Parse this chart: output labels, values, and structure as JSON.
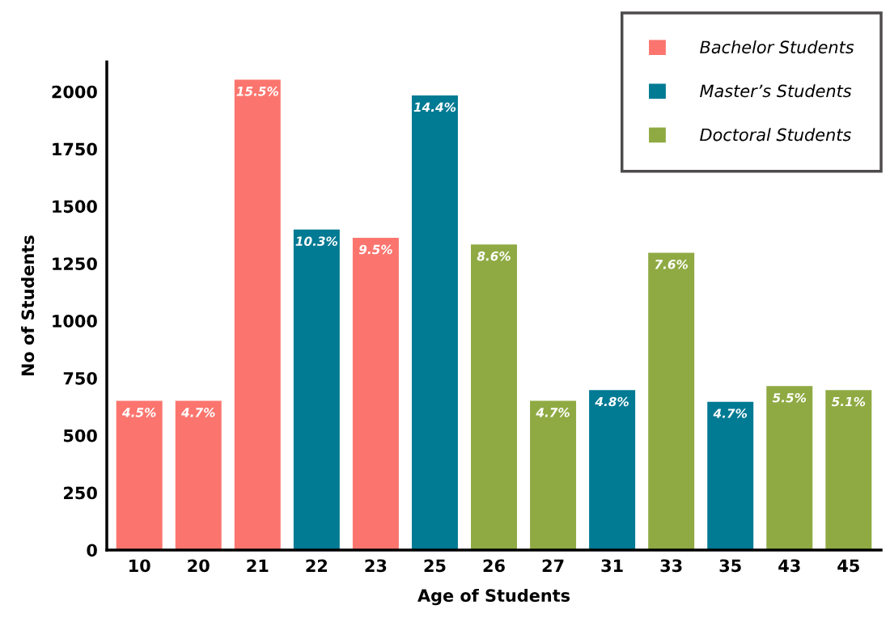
{
  "chart_data": {
    "type": "bar",
    "xlabel": "Age of Students",
    "ylabel": "No of Students",
    "categories": [
      "10",
      "20",
      "21",
      "22",
      "23",
      "25",
      "26",
      "27",
      "31",
      "33",
      "35",
      "43",
      "45"
    ],
    "series": [
      {
        "name": "Bachelor Students",
        "color": "#fb756e",
        "values": [
          651,
          651,
          2052,
          null,
          1362,
          null,
          null,
          null,
          null,
          null,
          null,
          null,
          null
        ]
      },
      {
        "name": "Master’s Students",
        "color": "#017a93",
        "values": [
          null,
          null,
          null,
          1398,
          null,
          1983,
          null,
          null,
          698,
          null,
          647,
          null,
          null
        ]
      },
      {
        "name": "Doctoral Students",
        "color": "#8faa43",
        "values": [
          null,
          null,
          null,
          null,
          null,
          null,
          1333,
          651,
          null,
          1297,
          null,
          715,
          698
        ]
      }
    ],
    "annotations": [
      {
        "text": "4.5%",
        "x": "10",
        "y": 651
      },
      {
        "text": "4.7%",
        "x": "20",
        "y": 651
      },
      {
        "text": "15.5%",
        "x": "21",
        "y": 2052
      },
      {
        "text": "10.3%",
        "x": "22",
        "y": 1398
      },
      {
        "text": "9.5%",
        "x": "23",
        "y": 1362
      },
      {
        "text": "14.4%",
        "x": "25",
        "y": 1983
      },
      {
        "text": "8.6%",
        "x": "26",
        "y": 1333
      },
      {
        "text": "4.7%",
        "x": "27",
        "y": 651
      },
      {
        "text": "4.8%",
        "x": "31",
        "y": 698
      },
      {
        "text": "7.6%",
        "x": "33",
        "y": 1297
      },
      {
        "text": "4.7%",
        "x": "35",
        "y": 647
      },
      {
        "text": "5.5%",
        "x": "43",
        "y": 715
      },
      {
        "text": "5.1%",
        "x": "45",
        "y": 698
      }
    ],
    "ylim": [
      0,
      2130
    ],
    "yticks": [
      0,
      250,
      500,
      750,
      1000,
      1250,
      1500,
      1750,
      2000
    ],
    "grid": false,
    "legend": "top right"
  }
}
